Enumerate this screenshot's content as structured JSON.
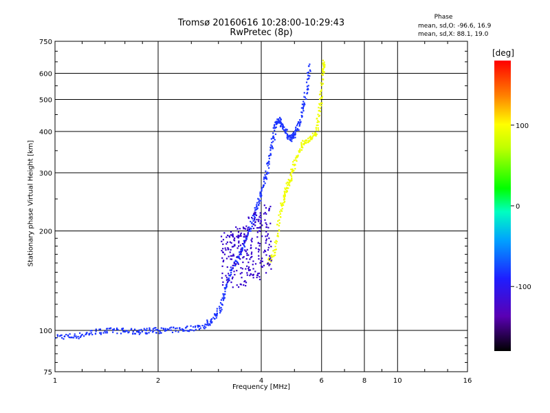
{
  "header": {
    "title_line1": "Tromsø 20160616 10:28:00-10:29:43",
    "title_line2": "RwPretec (8p)"
  },
  "phase_info": {
    "title": "Phase",
    "mean_sd_o": "mean, sd,O: -96.6, 16.9",
    "mean_sd_x": "mean, sd,X:  88.1, 19.0"
  },
  "colorbar": {
    "unit_label": "[deg]",
    "ticks": [
      "100",
      "0",
      "-100"
    ],
    "tick_values": [
      100,
      0,
      -100
    ],
    "range": [
      -180,
      180
    ]
  },
  "chart_data": {
    "type": "scatter",
    "xlabel": "Frequency [MHz]",
    "ylabel": "Stationary phase Virtual Height [km]",
    "x_scale": "log",
    "y_scale": "log",
    "xlim": [
      1,
      16
    ],
    "ylim": [
      75,
      750
    ],
    "grid": true,
    "x_ticks": [
      1,
      2,
      4,
      6,
      8,
      10,
      16
    ],
    "x_tick_labels": [
      "1",
      "2",
      "4",
      "6",
      "8",
      "10",
      "16"
    ],
    "y_ticks": [
      75,
      100,
      200,
      300,
      400,
      500,
      600,
      750
    ],
    "y_tick_labels": [
      "75",
      "100",
      "200",
      "300",
      "400",
      "500",
      "600",
      "750"
    ],
    "series": [
      {
        "color": "#1a33ff",
        "trace": [
          [
            1.0,
            96
          ],
          [
            1.15,
            96
          ],
          [
            1.3,
            99
          ],
          [
            1.5,
            100
          ],
          [
            1.7,
            99
          ],
          [
            1.9,
            100
          ],
          [
            2.1,
            100
          ],
          [
            2.4,
            101
          ],
          [
            2.7,
            103
          ],
          [
            2.9,
            108
          ],
          [
            3.05,
            118
          ],
          [
            3.15,
            135
          ],
          [
            3.3,
            155
          ],
          [
            3.5,
            175
          ],
          [
            3.7,
            200
          ],
          [
            3.85,
            230
          ],
          [
            4.0,
            260
          ],
          [
            4.15,
            300
          ],
          [
            4.3,
            360
          ],
          [
            4.4,
            420
          ],
          [
            4.5,
            435
          ],
          [
            4.65,
            410
          ],
          [
            4.85,
            380
          ],
          [
            5.0,
            390
          ],
          [
            5.2,
            430
          ],
          [
            5.4,
            520
          ],
          [
            5.55,
            640
          ]
        ]
      },
      {
        "color": "#f0ff00",
        "trace": [
          [
            4.2,
            160
          ],
          [
            4.4,
            175
          ],
          [
            4.55,
            230
          ],
          [
            4.7,
            260
          ],
          [
            4.85,
            285
          ],
          [
            5.0,
            320
          ],
          [
            5.3,
            370
          ],
          [
            5.6,
            380
          ],
          [
            5.8,
            400
          ],
          [
            5.95,
            480
          ],
          [
            6.05,
            600
          ],
          [
            6.1,
            650
          ]
        ]
      },
      {
        "color": "#3300cc",
        "spread": [
          [
            3.2,
            135,
            200
          ],
          [
            3.5,
            135,
            210
          ],
          [
            3.8,
            140,
            230
          ],
          [
            4.1,
            145,
            240
          ]
        ]
      }
    ]
  }
}
